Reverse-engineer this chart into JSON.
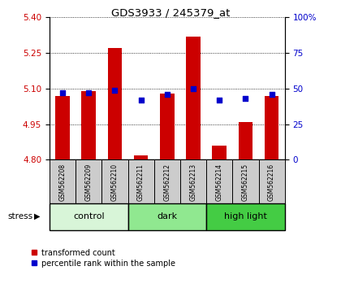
{
  "title": "GDS3933 / 245379_at",
  "samples": [
    "GSM562208",
    "GSM562209",
    "GSM562210",
    "GSM562211",
    "GSM562212",
    "GSM562213",
    "GSM562214",
    "GSM562215",
    "GSM562216"
  ],
  "transformed_count": [
    5.07,
    5.09,
    5.27,
    4.82,
    5.08,
    5.32,
    4.86,
    4.96,
    5.07
  ],
  "percentile_rank": [
    47,
    47,
    49,
    42,
    46,
    50,
    42,
    43,
    46
  ],
  "ylim_left": [
    4.8,
    5.4
  ],
  "ylim_right": [
    0,
    100
  ],
  "yticks_left": [
    4.8,
    4.95,
    5.1,
    5.25,
    5.4
  ],
  "yticks_right": [
    0,
    25,
    50,
    75,
    100
  ],
  "groups": [
    {
      "label": "control",
      "indices": [
        0,
        1,
        2
      ],
      "color": "#d8f5d8"
    },
    {
      "label": "dark",
      "indices": [
        3,
        4,
        5
      ],
      "color": "#90e890"
    },
    {
      "label": "high light",
      "indices": [
        6,
        7,
        8
      ],
      "color": "#44cc44"
    }
  ],
  "bar_color": "#cc0000",
  "square_color": "#0000cc",
  "bar_width": 0.55,
  "square_size": 18,
  "grid_color": "#000000",
  "label_bg_color": "#cccccc",
  "left_axis_color": "#cc0000",
  "right_axis_color": "#0000cc",
  "stress_label": "stress",
  "legend_items": [
    "transformed count",
    "percentile rank within the sample"
  ]
}
